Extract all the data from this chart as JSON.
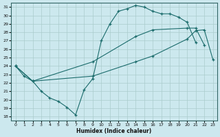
{
  "xlabel": "Humidex (Indice chaleur)",
  "bg_color": "#cce8ee",
  "grid_color": "#aacccc",
  "line_color": "#1a6b6b",
  "xlim": [
    -0.5,
    23.5
  ],
  "ylim": [
    17.5,
    31.5
  ],
  "xticks": [
    0,
    1,
    2,
    3,
    4,
    5,
    6,
    7,
    8,
    9,
    10,
    11,
    12,
    13,
    14,
    15,
    16,
    17,
    18,
    19,
    20,
    21,
    22,
    23
  ],
  "yticks": [
    18,
    19,
    20,
    21,
    22,
    23,
    24,
    25,
    26,
    27,
    28,
    29,
    30,
    31
  ],
  "line1_x": [
    0,
    1,
    2,
    3,
    4,
    5,
    6,
    7,
    8,
    9,
    10,
    11,
    12,
    13,
    14,
    15,
    16,
    17,
    18,
    19,
    20,
    21
  ],
  "line1_y": [
    24.0,
    22.8,
    22.2,
    21.0,
    20.2,
    19.8,
    19.1,
    18.2,
    21.2,
    22.5,
    27.0,
    29.0,
    30.5,
    30.8,
    31.2,
    31.0,
    30.5,
    30.2,
    30.2,
    29.8,
    29.2,
    26.8
  ],
  "line2_x": [
    0,
    2,
    9,
    14,
    16,
    20,
    21,
    22
  ],
  "line2_y": [
    24.0,
    22.2,
    24.5,
    27.5,
    28.3,
    28.5,
    28.5,
    26.5
  ],
  "line3_x": [
    0,
    2,
    9,
    14,
    16,
    20,
    21,
    22,
    23
  ],
  "line3_y": [
    24.0,
    22.2,
    22.8,
    24.5,
    25.2,
    27.2,
    28.2,
    28.3,
    24.8
  ]
}
